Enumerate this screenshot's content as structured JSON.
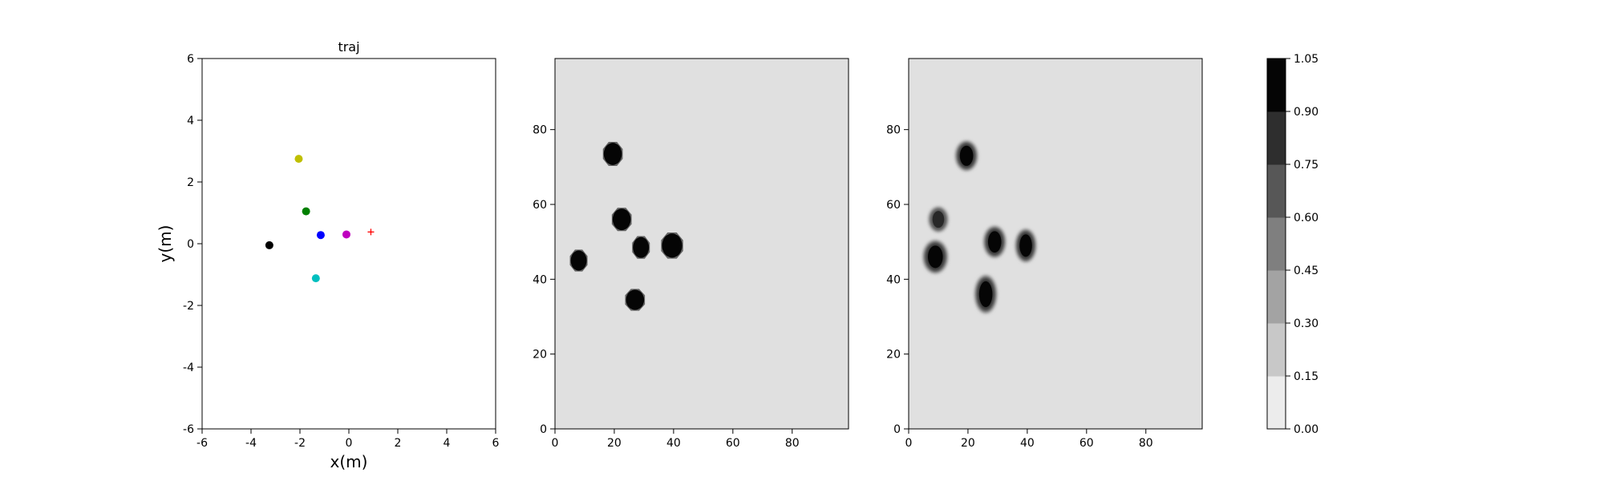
{
  "chart_data": [
    {
      "type": "scatter",
      "title": "traj",
      "xlabel": "x(m)",
      "ylabel": "y(m)",
      "xlim": [
        -6,
        6
      ],
      "ylim": [
        -6,
        6
      ],
      "xticks": [
        -6,
        -4,
        -2,
        0,
        2,
        4,
        6
      ],
      "yticks": [
        -6,
        -4,
        -2,
        0,
        2,
        4,
        6
      ],
      "grid": false,
      "points": [
        {
          "x": -2.05,
          "y": 2.75,
          "color": "#bfbf00",
          "marker": "o"
        },
        {
          "x": -1.75,
          "y": 1.05,
          "color": "#008000",
          "marker": "o"
        },
        {
          "x": -1.15,
          "y": 0.28,
          "color": "#0000ff",
          "marker": "o"
        },
        {
          "x": -0.1,
          "y": 0.3,
          "color": "#bf00bf",
          "marker": "o"
        },
        {
          "x": -3.25,
          "y": -0.05,
          "color": "#000000",
          "marker": "o"
        },
        {
          "x": -1.35,
          "y": -1.12,
          "color": "#00bfbf",
          "marker": "o"
        },
        {
          "x": 0.9,
          "y": 0.38,
          "color": "#ff0000",
          "marker": "+"
        }
      ]
    },
    {
      "type": "heatmap",
      "title": "",
      "xlim": [
        0,
        99
      ],
      "ylim": [
        0,
        99
      ],
      "xticks": [
        0,
        20,
        40,
        60,
        80
      ],
      "yticks": [
        0,
        20,
        40,
        60,
        80
      ],
      "background_level": 0.05,
      "blobs": [
        {
          "x": 19.5,
          "y": 73.5,
          "rx": 3.4,
          "ry": 3.3,
          "level": 1.0,
          "fuzzy": false
        },
        {
          "x": 22.5,
          "y": 56,
          "rx": 3.4,
          "ry": 3.2,
          "level": 1.0,
          "fuzzy": false
        },
        {
          "x": 8,
          "y": 45,
          "rx": 3.0,
          "ry": 3.0,
          "level": 1.0,
          "fuzzy": false
        },
        {
          "x": 29,
          "y": 48.5,
          "rx": 3.0,
          "ry": 3.1,
          "level": 1.0,
          "fuzzy": false
        },
        {
          "x": 39.5,
          "y": 49,
          "rx": 3.8,
          "ry": 3.6,
          "level": 1.0,
          "fuzzy": false
        },
        {
          "x": 27,
          "y": 34.5,
          "rx": 3.4,
          "ry": 3.0,
          "level": 1.0,
          "fuzzy": false
        }
      ]
    },
    {
      "type": "heatmap",
      "title": "",
      "xlim": [
        0,
        99
      ],
      "ylim": [
        0,
        99
      ],
      "xticks": [
        0,
        20,
        40,
        60,
        80
      ],
      "yticks": [
        0,
        20,
        40,
        60,
        80
      ],
      "background_level": 0.05,
      "blobs": [
        {
          "x": 19.5,
          "y": 73,
          "rx": 3.2,
          "ry": 3.6,
          "level": 1.0,
          "fuzzy": true
        },
        {
          "x": 10,
          "y": 56,
          "rx": 2.8,
          "ry": 3.0,
          "level": 0.85,
          "fuzzy": true
        },
        {
          "x": 9,
          "y": 46,
          "rx": 3.6,
          "ry": 4.0,
          "level": 1.0,
          "fuzzy": true
        },
        {
          "x": 29,
          "y": 50,
          "rx": 3.2,
          "ry": 3.8,
          "level": 1.0,
          "fuzzy": true
        },
        {
          "x": 39.5,
          "y": 49,
          "rx": 3.0,
          "ry": 4.0,
          "level": 1.0,
          "fuzzy": true
        },
        {
          "x": 26,
          "y": 36,
          "rx": 3.2,
          "ry": 4.6,
          "level": 1.0,
          "fuzzy": true
        }
      ]
    },
    {
      "type": "colorbar",
      "title": "",
      "range": [
        0.0,
        1.05
      ],
      "ticks": [
        "0.00",
        "0.15",
        "0.30",
        "0.45",
        "0.60",
        "0.75",
        "0.90",
        "1.05"
      ],
      "bands": [
        "#ececec",
        "#c8c8c8",
        "#a3a3a3",
        "#7f7f7f",
        "#575757",
        "#2e2e2e",
        "#050505"
      ]
    }
  ]
}
